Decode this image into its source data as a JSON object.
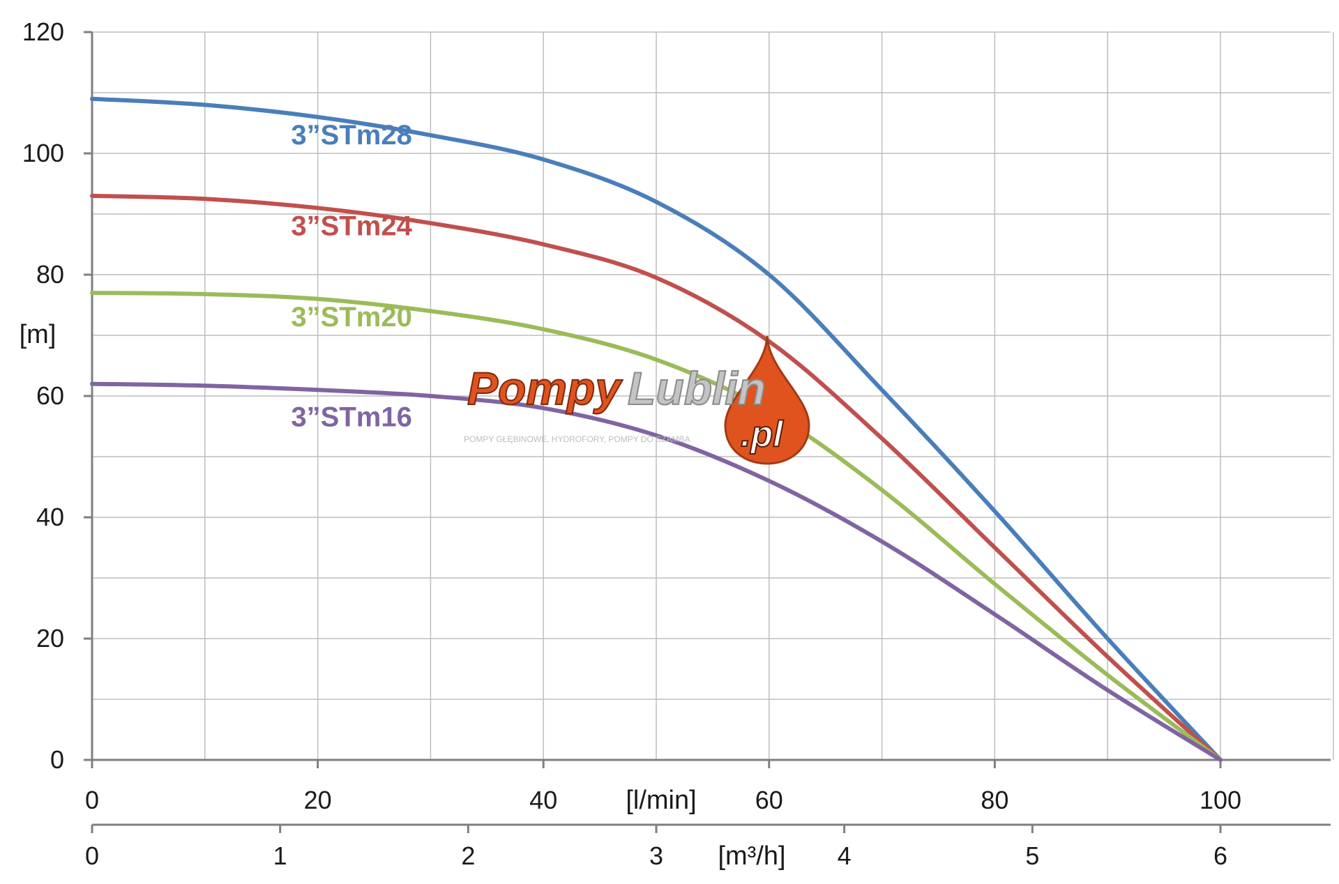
{
  "chart_data": {
    "type": "line",
    "x_unit_primary": "[l/min]",
    "x_unit_secondary": "[m³/h]",
    "ylabel": "[m]",
    "xlim": [
      0,
      110
    ],
    "ylim": [
      0,
      120
    ],
    "xticks_primary": [
      "0",
      "20",
      "40",
      "60",
      "80",
      "100"
    ],
    "xticks_secondary": [
      "0",
      "1",
      "2",
      "3",
      "4",
      "5",
      "6"
    ],
    "yticks": [
      "0",
      "20",
      "40",
      "60",
      "80",
      "100",
      "120"
    ],
    "grid": true,
    "series": [
      {
        "name": "3”STm28",
        "color": "#4a7ebb",
        "x": [
          0,
          10,
          20,
          30,
          40,
          50,
          60,
          70,
          80,
          90,
          100
        ],
        "y": [
          109,
          108,
          106,
          103,
          99,
          92,
          80,
          61,
          41,
          20,
          0
        ]
      },
      {
        "name": "3”STm24",
        "color": "#c0504d",
        "x": [
          0,
          10,
          20,
          30,
          40,
          50,
          60,
          70,
          80,
          90,
          100
        ],
        "y": [
          93,
          92.5,
          91,
          88.5,
          85,
          79.5,
          69,
          53,
          35,
          17,
          0
        ]
      },
      {
        "name": "3”STm20",
        "color": "#9bbb59",
        "x": [
          0,
          10,
          20,
          30,
          40,
          50,
          60,
          70,
          80,
          90,
          100
        ],
        "y": [
          77,
          76.8,
          76,
          74,
          71,
          66,
          57.5,
          44.5,
          29,
          14,
          0
        ]
      },
      {
        "name": "3”STm16",
        "color": "#8064a2",
        "x": [
          0,
          10,
          20,
          30,
          40,
          50,
          60,
          70,
          80,
          90,
          100
        ],
        "y": [
          62,
          61.7,
          61,
          60,
          58,
          53.5,
          46,
          36,
          24,
          11.5,
          0
        ]
      }
    ]
  },
  "watermark": {
    "brand_part1": "Pompy",
    "brand_part2": "Lublin",
    "drop_text": ".pl",
    "tagline": "POMPY GŁĘBINOWE, HYDROFORY, POMPY DO SZAMBA",
    "colors": {
      "orange": "#e0531f",
      "grey": "#c4c4c4"
    }
  }
}
